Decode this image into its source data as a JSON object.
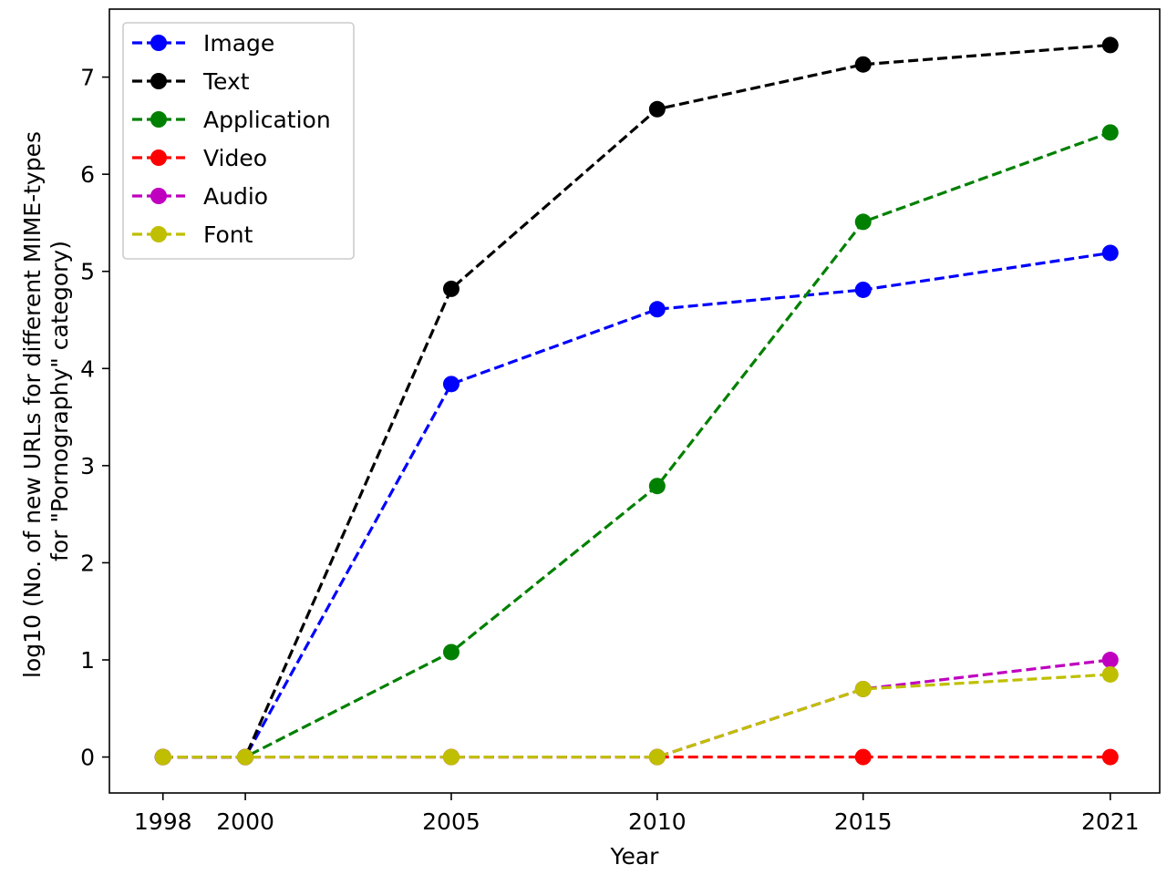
{
  "chart_data": {
    "type": "line",
    "x": [
      1998,
      2000,
      2005,
      2010,
      2015,
      2021
    ],
    "xlabel": "Year",
    "ylabel_lines": [
      "log10 (No. of new URLs for different MIME-types",
      "for \"Pornography\" category)"
    ],
    "xticks": [
      1998,
      2000,
      2005,
      2010,
      2015,
      2021
    ],
    "yticks": [
      0,
      1,
      2,
      3,
      4,
      5,
      6,
      7
    ],
    "xlim": [
      1996.7,
      2022.2
    ],
    "ylim": [
      -0.37,
      7.7
    ],
    "grid": false,
    "legend_position": "top-left",
    "line_style": "dashed",
    "marker": "circle",
    "series": [
      {
        "name": "Image",
        "color": "#0000ff",
        "values": [
          0,
          0,
          3.84,
          4.61,
          4.81,
          5.19
        ]
      },
      {
        "name": "Text",
        "color": "#000000",
        "values": [
          0,
          0,
          4.82,
          6.67,
          7.13,
          7.33
        ]
      },
      {
        "name": "Application",
        "color": "#008000",
        "values": [
          0,
          0,
          1.08,
          2.79,
          5.51,
          6.43
        ]
      },
      {
        "name": "Video",
        "color": "#ff0000",
        "values": [
          0,
          0,
          0,
          0,
          0,
          0
        ]
      },
      {
        "name": "Audio",
        "color": "#bf00bf",
        "values": [
          0,
          0,
          0,
          0,
          0.7,
          1.0
        ]
      },
      {
        "name": "Font",
        "color": "#bfbf00",
        "values": [
          0,
          0,
          0,
          0,
          0.7,
          0.85
        ]
      }
    ]
  }
}
